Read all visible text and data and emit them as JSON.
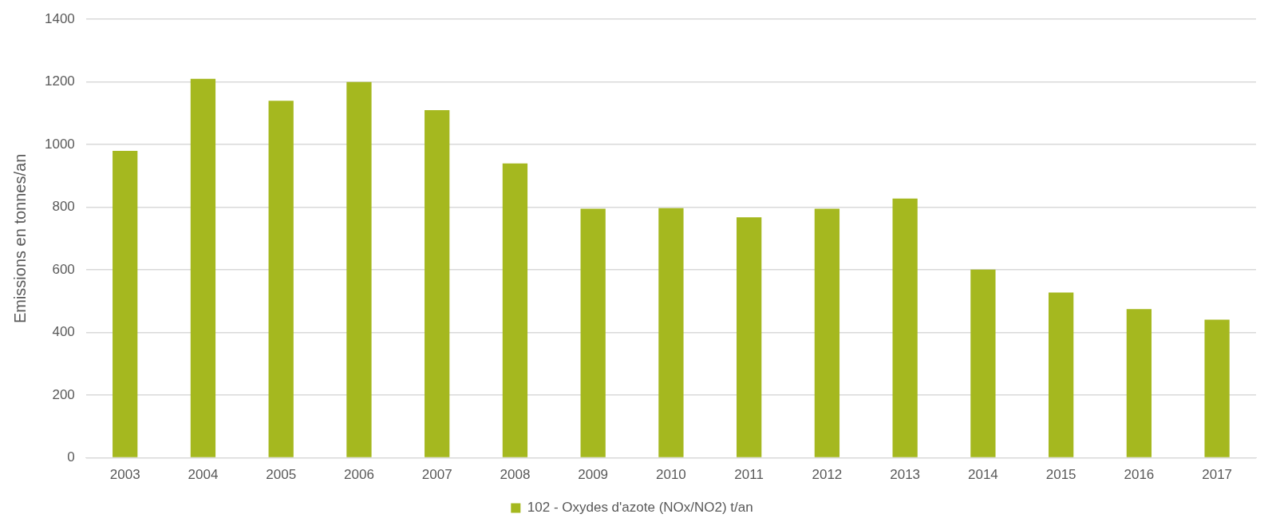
{
  "chart_data": {
    "type": "bar",
    "ylabel": "Emissions en tonnes/an",
    "categories": [
      "2003",
      "2004",
      "2005",
      "2006",
      "2007",
      "2008",
      "2009",
      "2010",
      "2011",
      "2012",
      "2013",
      "2014",
      "2015",
      "2016",
      "2017"
    ],
    "series": [
      {
        "name": "102 - Oxydes d'azote (NOx/NO2) t/an",
        "color": "#a5b81f",
        "values": [
          980,
          1210,
          1140,
          1200,
          1110,
          940,
          795,
          797,
          768,
          795,
          828,
          601,
          528,
          475,
          441
        ]
      }
    ],
    "ylim": [
      0,
      1400
    ],
    "yticks": [
      0,
      200,
      400,
      600,
      800,
      1000,
      1200,
      1400
    ],
    "grid": "y",
    "legend": "bottom"
  }
}
